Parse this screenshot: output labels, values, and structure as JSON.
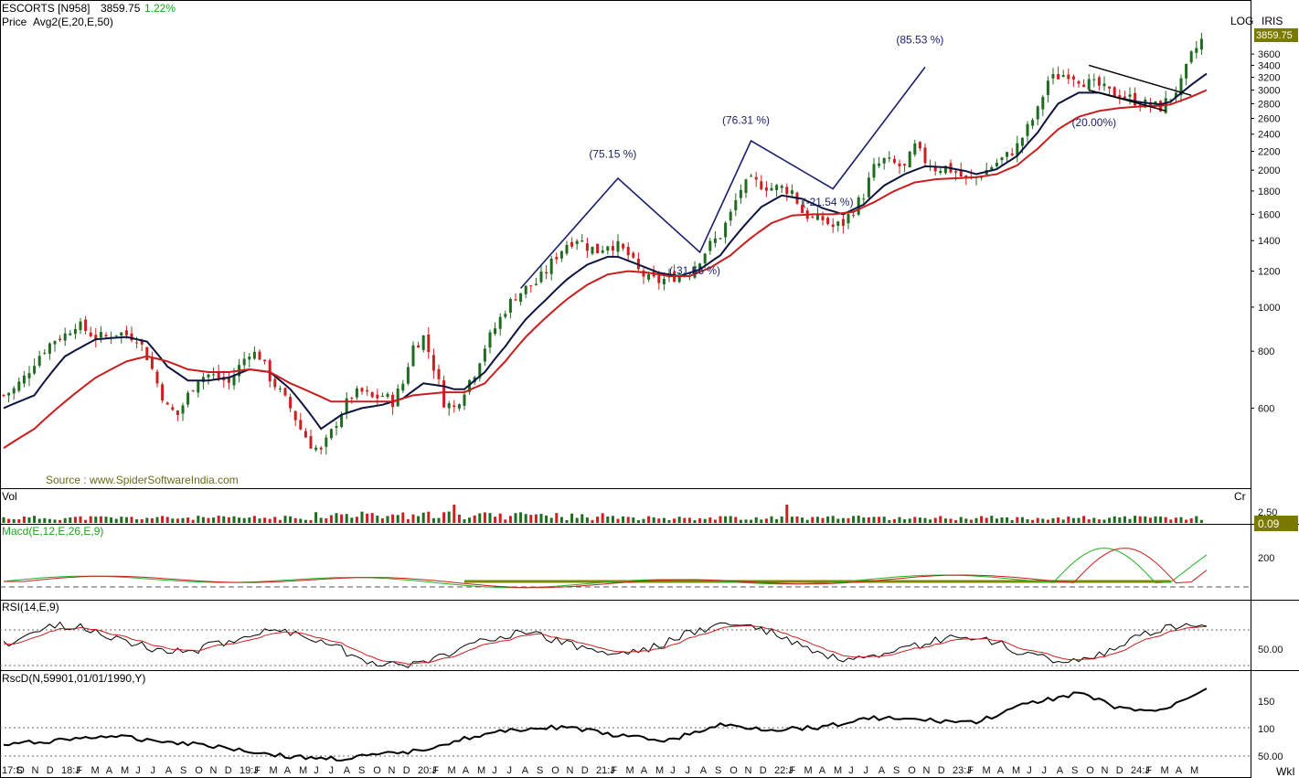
{
  "header": {
    "symbol": "ESCORTS [N958]",
    "last_price": "3859.75",
    "change": "1.22%",
    "indicator": "Avg2(E,20,E,50)",
    "price_label": "Price",
    "scale_mode": "LOG",
    "brand": "IRIS",
    "source": "Source : www.SpiderSoftwareIndia.com"
  },
  "panels": {
    "vol": {
      "label": "Vol",
      "unit": "Cr",
      "tick": "2.50",
      "current": "0.09"
    },
    "macd": {
      "label": "Macd(E,12,E,26,E,9)",
      "tick": "200"
    },
    "rsi": {
      "label": "RSI(14,E,9)",
      "tick": "50.00"
    },
    "rscd": {
      "label": "RscD(N,59901,01/01/1990,Y)",
      "ticks": [
        "150",
        "100",
        "50.00"
      ]
    }
  },
  "colors": {
    "up": "#1f6b1f",
    "down": "#cc1f1f",
    "ema20": "#0d1440",
    "ema50": "#c81e1e",
    "zigzag": "#1a1f6b",
    "macd_signal_line": "#7a8a00",
    "value_box": "#7a7a00"
  },
  "chart_data": {
    "type": "line",
    "title": "ESCORTS [N958]",
    "scale": "log",
    "ylim": [
      400,
      4100
    ],
    "y_ticks": [
      "600",
      "800",
      "1000",
      "1200",
      "1400",
      "1600",
      "1800",
      "2000",
      "2200",
      "2400",
      "2600",
      "2800",
      "3000",
      "3200",
      "3400",
      "3600",
      "3859.75"
    ],
    "x_ticks": [
      "17:S",
      "O",
      "N",
      "D",
      "18:J",
      "F",
      "M",
      "A",
      "M",
      "J",
      "J",
      "A",
      "S",
      "O",
      "N",
      "D",
      "19:J",
      "F",
      "M",
      "A",
      "M",
      "J",
      "J",
      "A",
      "S",
      "O",
      "N",
      "D",
      "20:J",
      "F",
      "M",
      "A",
      "M",
      "J",
      "J",
      "A",
      "S",
      "O",
      "N",
      "D",
      "21:J",
      "F",
      "M",
      "A",
      "M",
      "J",
      "J",
      "A",
      "S",
      "O",
      "N",
      "D",
      "22:J",
      "F",
      "M",
      "A",
      "M",
      "J",
      "J",
      "A",
      "S",
      "O",
      "N",
      "D",
      "23:J",
      "F",
      "M",
      "A",
      "M",
      "J",
      "J",
      "A",
      "S",
      "O",
      "N",
      "D",
      "24:J",
      "F",
      "M",
      "A",
      "M"
    ],
    "x_unit": "WkI",
    "series": [
      {
        "name": "Price",
        "points": [
          [
            0,
            640
          ],
          [
            2,
            660
          ],
          [
            4,
            700
          ],
          [
            6,
            760
          ],
          [
            8,
            810
          ],
          [
            10,
            850
          ],
          [
            12,
            870
          ],
          [
            14,
            920
          ],
          [
            16,
            890
          ],
          [
            18,
            860
          ],
          [
            20,
            860
          ],
          [
            22,
            880
          ],
          [
            24,
            870
          ],
          [
            26,
            860
          ],
          [
            28,
            780
          ],
          [
            30,
            680
          ],
          [
            32,
            600
          ],
          [
            34,
            580
          ],
          [
            36,
            640
          ],
          [
            38,
            700
          ],
          [
            40,
            710
          ],
          [
            42,
            700
          ],
          [
            44,
            680
          ],
          [
            46,
            740
          ],
          [
            48,
            800
          ],
          [
            50,
            780
          ],
          [
            52,
            700
          ],
          [
            54,
            650
          ],
          [
            56,
            600
          ],
          [
            58,
            540
          ],
          [
            60,
            500
          ],
          [
            62,
            480
          ],
          [
            64,
            530
          ],
          [
            66,
            590
          ],
          [
            68,
            640
          ],
          [
            70,
            650
          ],
          [
            72,
            630
          ],
          [
            74,
            640
          ],
          [
            76,
            620
          ],
          [
            78,
            680
          ],
          [
            80,
            820
          ],
          [
            82,
            860
          ],
          [
            84,
            740
          ],
          [
            86,
            620
          ],
          [
            88,
            600
          ],
          [
            90,
            660
          ],
          [
            92,
            720
          ],
          [
            94,
            820
          ],
          [
            96,
            900
          ],
          [
            98,
            990
          ],
          [
            100,
            1060
          ],
          [
            102,
            1100
          ],
          [
            104,
            1130
          ],
          [
            106,
            1200
          ],
          [
            108,
            1300
          ],
          [
            110,
            1380
          ],
          [
            112,
            1420
          ],
          [
            114,
            1360
          ],
          [
            116,
            1330
          ],
          [
            118,
            1380
          ],
          [
            120,
            1360
          ],
          [
            122,
            1300
          ],
          [
            124,
            1200
          ],
          [
            126,
            1150
          ],
          [
            128,
            1140
          ],
          [
            130,
            1160
          ],
          [
            132,
            1180
          ],
          [
            134,
            1200
          ],
          [
            136,
            1280
          ],
          [
            138,
            1370
          ],
          [
            140,
            1440
          ],
          [
            142,
            1600
          ],
          [
            144,
            1820
          ],
          [
            146,
            1890
          ],
          [
            148,
            1860
          ],
          [
            150,
            1830
          ],
          [
            152,
            1830
          ],
          [
            154,
            1800
          ],
          [
            156,
            1620
          ],
          [
            158,
            1560
          ],
          [
            160,
            1560
          ],
          [
            162,
            1500
          ],
          [
            164,
            1530
          ],
          [
            166,
            1640
          ],
          [
            168,
            1770
          ],
          [
            170,
            2020
          ],
          [
            172,
            2100
          ],
          [
            174,
            2060
          ],
          [
            176,
            2020
          ],
          [
            178,
            2250
          ],
          [
            180,
            2100
          ],
          [
            182,
            2020
          ],
          [
            184,
            2030
          ],
          [
            186,
            1980
          ],
          [
            188,
            1900
          ],
          [
            190,
            1930
          ],
          [
            192,
            2000
          ],
          [
            194,
            2080
          ],
          [
            196,
            2150
          ],
          [
            198,
            2260
          ],
          [
            200,
            2470
          ],
          [
            202,
            2700
          ],
          [
            204,
            3150
          ],
          [
            206,
            3220
          ],
          [
            208,
            3270
          ],
          [
            210,
            3180
          ],
          [
            212,
            3100
          ],
          [
            214,
            3060
          ],
          [
            216,
            2960
          ],
          [
            218,
            2930
          ],
          [
            220,
            2880
          ],
          [
            222,
            2810
          ],
          [
            224,
            2780
          ],
          [
            226,
            2750
          ],
          [
            228,
            2900
          ],
          [
            230,
            3100
          ],
          [
            232,
            3560
          ],
          [
            234,
            3859.75
          ]
        ]
      },
      {
        "name": "EMA 20",
        "points": [
          [
            0,
            600
          ],
          [
            6,
            640
          ],
          [
            12,
            780
          ],
          [
            18,
            850
          ],
          [
            24,
            860
          ],
          [
            28,
            840
          ],
          [
            32,
            740
          ],
          [
            36,
            690
          ],
          [
            40,
            690
          ],
          [
            44,
            700
          ],
          [
            48,
            730
          ],
          [
            52,
            720
          ],
          [
            56,
            660
          ],
          [
            60,
            580
          ],
          [
            62,
            540
          ],
          [
            64,
            560
          ],
          [
            66,
            580
          ],
          [
            70,
            600
          ],
          [
            74,
            610
          ],
          [
            78,
            630
          ],
          [
            82,
            680
          ],
          [
            86,
            670
          ],
          [
            88,
            660
          ],
          [
            90,
            660
          ],
          [
            94,
            720
          ],
          [
            98,
            820
          ],
          [
            102,
            940
          ],
          [
            106,
            1040
          ],
          [
            110,
            1150
          ],
          [
            114,
            1240
          ],
          [
            118,
            1290
          ],
          [
            120,
            1290
          ],
          [
            124,
            1240
          ],
          [
            128,
            1190
          ],
          [
            132,
            1170
          ],
          [
            136,
            1210
          ],
          [
            140,
            1300
          ],
          [
            144,
            1480
          ],
          [
            148,
            1660
          ],
          [
            152,
            1760
          ],
          [
            156,
            1730
          ],
          [
            160,
            1650
          ],
          [
            164,
            1600
          ],
          [
            168,
            1680
          ],
          [
            172,
            1850
          ],
          [
            176,
            1960
          ],
          [
            180,
            2040
          ],
          [
            184,
            2030
          ],
          [
            188,
            1990
          ],
          [
            190,
            1960
          ],
          [
            194,
            2010
          ],
          [
            198,
            2150
          ],
          [
            202,
            2420
          ],
          [
            206,
            2800
          ],
          [
            210,
            2960
          ],
          [
            214,
            2960
          ],
          [
            218,
            2880
          ],
          [
            222,
            2820
          ],
          [
            226,
            2790
          ],
          [
            228,
            2830
          ],
          [
            232,
            3080
          ],
          [
            235,
            3260
          ]
        ]
      },
      {
        "name": "EMA 50",
        "points": [
          [
            0,
            490
          ],
          [
            6,
            540
          ],
          [
            12,
            620
          ],
          [
            18,
            700
          ],
          [
            24,
            760
          ],
          [
            28,
            780
          ],
          [
            32,
            760
          ],
          [
            36,
            730
          ],
          [
            40,
            720
          ],
          [
            44,
            720
          ],
          [
            48,
            730
          ],
          [
            52,
            720
          ],
          [
            56,
            680
          ],
          [
            60,
            650
          ],
          [
            64,
            620
          ],
          [
            68,
            620
          ],
          [
            72,
            620
          ],
          [
            76,
            620
          ],
          [
            80,
            640
          ],
          [
            86,
            650
          ],
          [
            90,
            650
          ],
          [
            94,
            680
          ],
          [
            98,
            760
          ],
          [
            102,
            860
          ],
          [
            106,
            950
          ],
          [
            110,
            1040
          ],
          [
            114,
            1120
          ],
          [
            118,
            1180
          ],
          [
            122,
            1200
          ],
          [
            126,
            1190
          ],
          [
            130,
            1170
          ],
          [
            134,
            1170
          ],
          [
            138,
            1220
          ],
          [
            142,
            1300
          ],
          [
            146,
            1420
          ],
          [
            150,
            1530
          ],
          [
            154,
            1590
          ],
          [
            158,
            1600
          ],
          [
            162,
            1600
          ],
          [
            166,
            1620
          ],
          [
            170,
            1700
          ],
          [
            174,
            1800
          ],
          [
            178,
            1880
          ],
          [
            182,
            1910
          ],
          [
            186,
            1920
          ],
          [
            190,
            1930
          ],
          [
            194,
            1960
          ],
          [
            198,
            2050
          ],
          [
            202,
            2230
          ],
          [
            206,
            2460
          ],
          [
            210,
            2620
          ],
          [
            214,
            2700
          ],
          [
            218,
            2740
          ],
          [
            222,
            2760
          ],
          [
            226,
            2770
          ],
          [
            228,
            2790
          ],
          [
            232,
            2900
          ],
          [
            235,
            3000
          ]
        ]
      }
    ],
    "zigzag": [
      [
        101,
        1100
      ],
      [
        120,
        1920
      ],
      [
        136,
        1320
      ],
      [
        146,
        2320
      ],
      [
        162,
        1820
      ],
      [
        180,
        3370
      ]
    ],
    "annotations": [
      {
        "text": "(75.15 %)",
        "x": 119,
        "y": 2130
      },
      {
        "text": "(-31.56 %)",
        "x": 135,
        "y": 1180
      },
      {
        "text": "(76.31 %)",
        "x": 145,
        "y": 2530
      },
      {
        "text": "(-21.54 %)",
        "x": 161,
        "y": 1670
      },
      {
        "text": "(85.53 %)",
        "x": 179,
        "y": 3800
      },
      {
        "text": "(20.00%)",
        "x": 213,
        "y": 2500
      }
    ],
    "channel": {
      "upper": [
        [
          212,
          3400
        ],
        [
          232,
          2920
        ]
      ],
      "lower": [
        [
          212,
          3000
        ],
        [
          227,
          2700
        ]
      ]
    }
  }
}
